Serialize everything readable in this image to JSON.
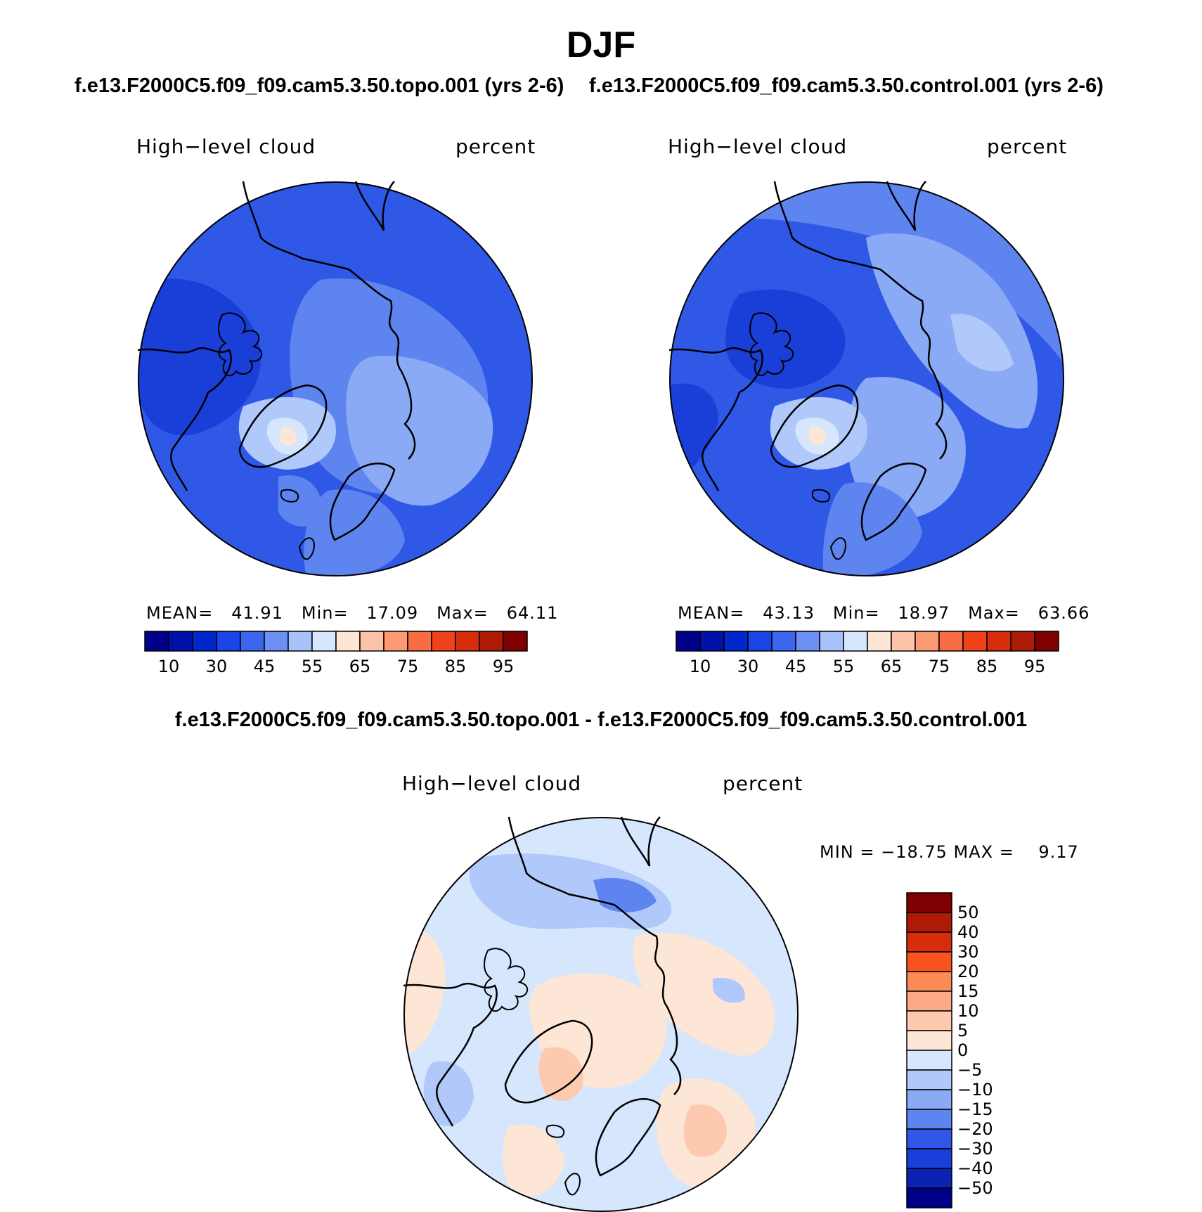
{
  "title": "DJF",
  "panels": [
    {
      "case_title": "f.e13.F2000C5.f09_f09.cam5.3.50.topo.001 (yrs 2-6)",
      "variable_label": "High−level cloud",
      "units_label": "percent",
      "stats": {
        "mean_label": "MEAN=",
        "mean": "41.91",
        "min_label": "Min=",
        "min": "17.09",
        "max_label": "Max=",
        "max": "64.11"
      }
    },
    {
      "case_title": "f.e13.F2000C5.f09_f09.cam5.3.50.control.001 (yrs 2-6)",
      "variable_label": "High−level cloud",
      "units_label": "percent",
      "stats": {
        "mean_label": "MEAN=",
        "mean": "43.13",
        "min_label": "Min=",
        "min": "18.97",
        "max_label": "Max=",
        "max": "63.66"
      }
    }
  ],
  "absolute_colorbar": {
    "colors": [
      "#00008b",
      "#0011a8",
      "#0027cc",
      "#1a44e6",
      "#3c66ee",
      "#6d90f5",
      "#a7c2fa",
      "#d6e6fc",
      "#fde5d3",
      "#fcc3a8",
      "#fb9a72",
      "#f86c43",
      "#ef4218",
      "#d62e0c",
      "#ad1a06",
      "#7f0000"
    ],
    "tick_labels": [
      "10",
      "30",
      "45",
      "55",
      "65",
      "75",
      "85",
      "95"
    ]
  },
  "difference": {
    "title": "f.e13.F2000C5.f09_f09.cam5.3.50.topo.001 - f.e13.F2000C5.f09_f09.cam5.3.50.control.001",
    "variable_label": "High−level cloud",
    "units_label": "percent",
    "range_text": "MIN = −18.75 MAX =    9.17",
    "colorbar": {
      "colors_top_to_bottom": [
        "#7f0000",
        "#ad1a06",
        "#d62e0c",
        "#f8521e",
        "#fb8a57",
        "#fcaa85",
        "#fdcab0",
        "#fde6d6",
        "#d6e6fc",
        "#b0c8fa",
        "#8aaaf6",
        "#5e84f0",
        "#3058e6",
        "#1a3fd9",
        "#0a23b3",
        "#00008b"
      ],
      "tick_labels": [
        "50",
        "40",
        "30",
        "20",
        "15",
        "10",
        "5",
        "0",
        "−5",
        "−10",
        "−15",
        "−20",
        "−30",
        "−40",
        "−50"
      ]
    }
  }
}
